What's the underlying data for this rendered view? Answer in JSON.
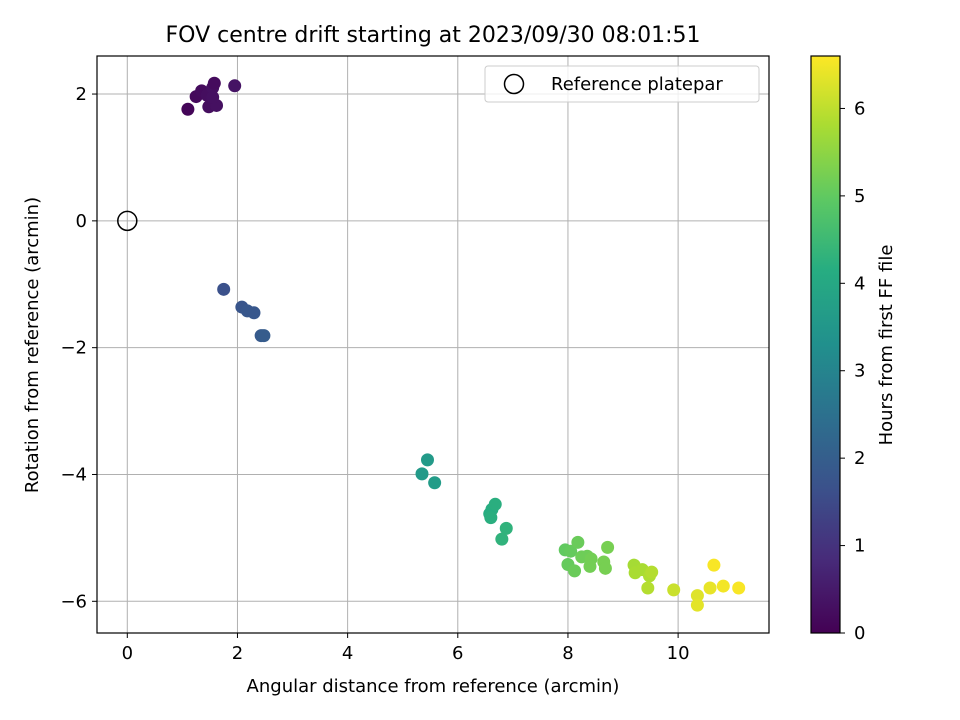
{
  "chart_data": {
    "type": "scatter",
    "title": "FOV centre drift starting at 2023/09/30 08:01:51",
    "xlabel": "Angular distance from reference (arcmin)",
    "ylabel": "Rotation from reference (arcmin)",
    "xlim": [
      -0.55,
      11.65
    ],
    "ylim": [
      -6.5,
      2.6
    ],
    "x_ticks": [
      0,
      2,
      4,
      6,
      8,
      10
    ],
    "y_ticks": [
      -6,
      -4,
      -2,
      0,
      2
    ],
    "grid": true,
    "legend": {
      "position": "top-right",
      "entries": [
        "Reference platepar"
      ]
    },
    "reference_point": {
      "label": "Reference platepar",
      "x": 0,
      "y": 0
    },
    "colorbar": {
      "label": "Hours from first FF file",
      "range": [
        0,
        6.6
      ],
      "ticks": [
        0,
        1,
        2,
        3,
        4,
        5,
        6
      ],
      "colormap": "viridis"
    },
    "points": [
      {
        "x": 1.1,
        "y": 1.76,
        "c": 0.1
      },
      {
        "x": 1.25,
        "y": 1.96,
        "c": 0.15
      },
      {
        "x": 1.35,
        "y": 2.05,
        "c": 0.2
      },
      {
        "x": 1.45,
        "y": 1.98,
        "c": 0.25
      },
      {
        "x": 1.55,
        "y": 2.1,
        "c": 0.3
      },
      {
        "x": 1.58,
        "y": 2.17,
        "c": 0.2
      },
      {
        "x": 1.48,
        "y": 1.8,
        "c": 0.25
      },
      {
        "x": 1.62,
        "y": 1.82,
        "c": 0.3
      },
      {
        "x": 1.55,
        "y": 1.95,
        "c": 0.3
      },
      {
        "x": 1.95,
        "y": 2.13,
        "c": 0.35
      },
      {
        "x": 1.75,
        "y": -1.08,
        "c": 1.65
      },
      {
        "x": 2.08,
        "y": -1.36,
        "c": 1.75
      },
      {
        "x": 2.18,
        "y": -1.42,
        "c": 1.8
      },
      {
        "x": 2.3,
        "y": -1.45,
        "c": 1.8
      },
      {
        "x": 2.43,
        "y": -1.81,
        "c": 1.9
      },
      {
        "x": 2.48,
        "y": -1.81,
        "c": 1.95
      },
      {
        "x": 5.35,
        "y": -3.99,
        "c": 3.6
      },
      {
        "x": 5.45,
        "y": -3.77,
        "c": 3.6
      },
      {
        "x": 5.58,
        "y": -4.13,
        "c": 3.65
      },
      {
        "x": 6.58,
        "y": -4.62,
        "c": 4.15
      },
      {
        "x": 6.62,
        "y": -4.55,
        "c": 4.15
      },
      {
        "x": 6.68,
        "y": -4.47,
        "c": 4.2
      },
      {
        "x": 6.6,
        "y": -4.68,
        "c": 4.2
      },
      {
        "x": 6.88,
        "y": -4.85,
        "c": 4.3
      },
      {
        "x": 6.8,
        "y": -5.02,
        "c": 4.3
      },
      {
        "x": 7.95,
        "y": -5.19,
        "c": 5.0
      },
      {
        "x": 8.05,
        "y": -5.21,
        "c": 5.05
      },
      {
        "x": 8.0,
        "y": -5.42,
        "c": 5.05
      },
      {
        "x": 8.12,
        "y": -5.52,
        "c": 5.1
      },
      {
        "x": 8.18,
        "y": -5.07,
        "c": 5.1
      },
      {
        "x": 8.25,
        "y": -5.3,
        "c": 5.15
      },
      {
        "x": 8.35,
        "y": -5.29,
        "c": 5.15
      },
      {
        "x": 8.42,
        "y": -5.33,
        "c": 5.2
      },
      {
        "x": 8.4,
        "y": -5.45,
        "c": 5.2
      },
      {
        "x": 8.65,
        "y": -5.38,
        "c": 5.25
      },
      {
        "x": 8.68,
        "y": -5.48,
        "c": 5.25
      },
      {
        "x": 8.72,
        "y": -5.15,
        "c": 5.25
      },
      {
        "x": 9.2,
        "y": -5.43,
        "c": 5.75
      },
      {
        "x": 9.22,
        "y": -5.55,
        "c": 5.8
      },
      {
        "x": 9.35,
        "y": -5.5,
        "c": 5.8
      },
      {
        "x": 9.48,
        "y": -5.6,
        "c": 5.85
      },
      {
        "x": 9.52,
        "y": -5.54,
        "c": 5.9
      },
      {
        "x": 9.45,
        "y": -5.79,
        "c": 5.9
      },
      {
        "x": 9.92,
        "y": -5.82,
        "c": 6.1
      },
      {
        "x": 10.35,
        "y": -5.91,
        "c": 6.3
      },
      {
        "x": 10.35,
        "y": -6.06,
        "c": 6.35
      },
      {
        "x": 10.58,
        "y": -5.79,
        "c": 6.4
      },
      {
        "x": 10.65,
        "y": -5.43,
        "c": 6.55
      },
      {
        "x": 10.82,
        "y": -5.76,
        "c": 6.5
      },
      {
        "x": 11.1,
        "y": -5.79,
        "c": 6.55
      }
    ]
  }
}
